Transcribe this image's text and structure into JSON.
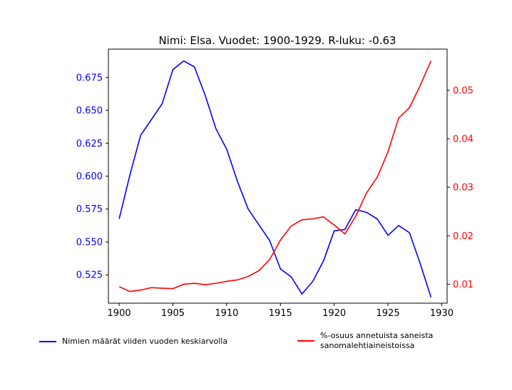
{
  "chart_data": {
    "type": "line",
    "title": "Nimi: Elsa. Vuodet: 1900-1929. R-luku: -0.63",
    "x": [
      1900,
      1901,
      1902,
      1903,
      1904,
      1905,
      1906,
      1907,
      1908,
      1909,
      1910,
      1911,
      1912,
      1913,
      1914,
      1915,
      1916,
      1917,
      1918,
      1919,
      1920,
      1921,
      1922,
      1923,
      1924,
      1925,
      1926,
      1927,
      1928,
      1929
    ],
    "xlim": [
      1899.0,
      1930.5
    ],
    "xticks": [
      1900,
      1905,
      1910,
      1915,
      1920,
      1925,
      1930
    ],
    "xtick_labels": [
      "1900",
      "1905",
      "1910",
      "1915",
      "1920",
      "1925",
      "1930"
    ],
    "series": [
      {
        "name": "Nimien määrät viiden vuoden keskiarvolla",
        "color": "#0000ff",
        "axis": "left",
        "values": [
          0.5675,
          0.601,
          0.631,
          0.643,
          0.655,
          0.681,
          0.6875,
          0.683,
          0.6615,
          0.636,
          0.6205,
          0.596,
          0.575,
          0.563,
          0.551,
          0.5295,
          0.5235,
          0.5105,
          0.52,
          0.5355,
          0.5585,
          0.5595,
          0.5745,
          0.5725,
          0.5675,
          0.555,
          0.5625,
          0.557,
          0.5335,
          0.508
        ]
      },
      {
        "name": "%-osuus annetuista saneista\n sanomalehtiaineistoissa",
        "color": "#ff0000",
        "axis": "right",
        "values": [
          0.0095,
          0.0085,
          0.0088,
          0.0093,
          0.0092,
          0.0091,
          0.01,
          0.0102,
          0.0099,
          0.0102,
          0.0106,
          0.0109,
          0.0116,
          0.0128,
          0.0151,
          0.0191,
          0.022,
          0.0233,
          0.0235,
          0.0239,
          0.0222,
          0.0204,
          0.024,
          0.0288,
          0.0321,
          0.0373,
          0.0443,
          0.0464,
          0.051,
          0.0561
        ]
      }
    ],
    "yleft": {
      "lim": [
        0.5035,
        0.6965
      ],
      "ticks": [
        0.525,
        0.55,
        0.575,
        0.6,
        0.625,
        0.65,
        0.675
      ],
      "tick_labels": [
        "0.525",
        "0.550",
        "0.575",
        "0.600",
        "0.625",
        "0.650",
        "0.675"
      ],
      "color": "#0000ff"
    },
    "yright": {
      "lim": [
        0.0061,
        0.0585
      ],
      "ticks": [
        0.01,
        0.02,
        0.03,
        0.04,
        0.05
      ],
      "tick_labels": [
        "0.01",
        "0.02",
        "0.03",
        "0.04",
        "0.05"
      ],
      "color": "#ff0000"
    },
    "legend_position": "bottom"
  }
}
